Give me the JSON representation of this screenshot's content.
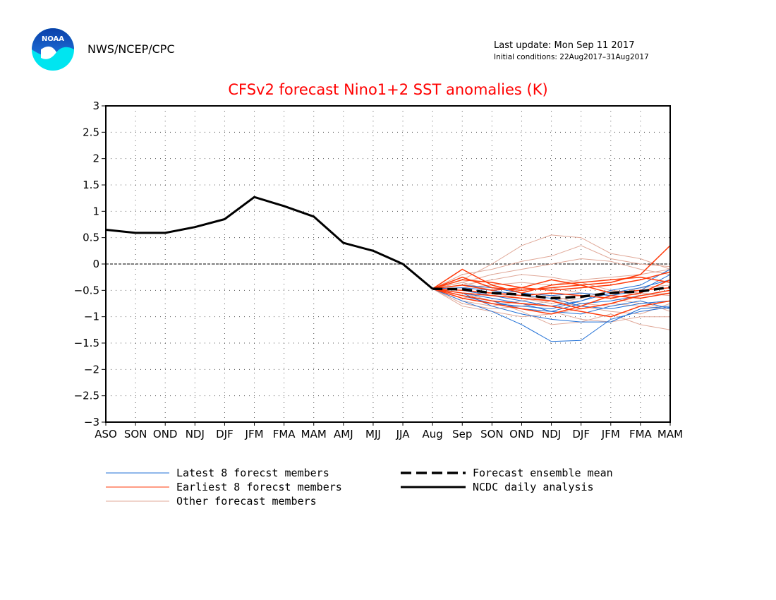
{
  "header": {
    "agency": "NWS/NCEP/CPC",
    "last_update": "Last update: Mon Sep 11 2017",
    "initial_conditions": "Initial conditions: 22Aug2017–31Aug2017",
    "logo_text": "NOAA"
  },
  "chart_data": {
    "type": "line",
    "title": "CFSv2 forecast Nino1+2 SST anomalies (K)",
    "xlabel": "",
    "ylabel": "",
    "categories": [
      "ASO",
      "SON",
      "OND",
      "NDJ",
      "DJF",
      "JFM",
      "FMA",
      "MAM",
      "AMJ",
      "MJJ",
      "JJA",
      "Aug",
      "Sep",
      "SON",
      "OND",
      "NDJ",
      "DJF",
      "JFM",
      "FMA",
      "MAM"
    ],
    "ylim": [
      -3,
      3
    ],
    "yticks": [
      3,
      2.5,
      2,
      1.5,
      1,
      0.5,
      0,
      -0.5,
      -1,
      -1.5,
      -2,
      -2.5,
      -3
    ],
    "ytick_labels": [
      "3",
      "2.5",
      "2",
      "1.5",
      "1",
      "0.5",
      "0",
      "−0.5",
      "−1",
      "−1.5",
      "−2",
      "−2.5",
      "−3"
    ],
    "grid": true,
    "zero_line": true,
    "colors": {
      "latest": "#1f6fd6",
      "earliest": "#ff3a0a",
      "other": "#e0a898",
      "analysis": "#000000",
      "ensemble": "#000000",
      "title": "#ff0000"
    },
    "analysis": {
      "name": "NCDC daily analysis",
      "x_start": 0,
      "values": [
        0.65,
        0.59,
        0.59,
        0.7,
        0.85,
        1.27,
        1.1,
        0.9,
        0.4,
        0.25,
        0.0,
        -0.47
      ]
    },
    "ensemble_mean": {
      "name": "Forecast ensemble mean",
      "x_start": 11,
      "values": [
        -0.47,
        -0.48,
        -0.55,
        -0.58,
        -0.65,
        -0.62,
        -0.55,
        -0.52,
        -0.44
      ]
    },
    "latest_members": {
      "name": "Latest 8 forecst members",
      "x_start": 11,
      "series": [
        [
          -0.47,
          -0.7,
          -0.9,
          -1.15,
          -1.47,
          -1.45,
          -1.05,
          -0.9,
          -0.82
        ],
        [
          -0.47,
          -0.55,
          -0.8,
          -0.95,
          -1.05,
          -1.1,
          -1.1,
          -0.85,
          -0.8
        ],
        [
          -0.47,
          -0.6,
          -0.7,
          -0.85,
          -0.9,
          -0.75,
          -0.7,
          -0.6,
          -0.5
        ],
        [
          -0.47,
          -0.45,
          -0.5,
          -0.6,
          -0.65,
          -0.8,
          -0.85,
          -0.75,
          -0.7
        ],
        [
          -0.47,
          -0.5,
          -0.6,
          -0.7,
          -0.8,
          -0.7,
          -0.5,
          -0.4,
          -0.1
        ],
        [
          -0.47,
          -0.4,
          -0.45,
          -0.55,
          -0.6,
          -0.55,
          -0.6,
          -0.5,
          -0.2
        ],
        [
          -0.47,
          -0.55,
          -0.65,
          -0.75,
          -0.9,
          -0.95,
          -0.8,
          -0.7,
          -0.85
        ],
        [
          -0.47,
          -0.6,
          -0.75,
          -0.8,
          -0.85,
          -0.7,
          -0.55,
          -0.45,
          -0.3
        ]
      ]
    },
    "earliest_members": {
      "name": "Earliest 8 forecst members",
      "x_start": 11,
      "series": [
        [
          -0.47,
          -0.1,
          -0.4,
          -0.55,
          -0.4,
          -0.35,
          -0.3,
          -0.25,
          -0.35
        ],
        [
          -0.47,
          -0.25,
          -0.45,
          -0.5,
          -0.45,
          -0.4,
          -0.35,
          -0.2,
          0.35
        ],
        [
          -0.47,
          -0.3,
          -0.35,
          -0.45,
          -0.5,
          -0.45,
          -0.4,
          -0.3,
          -0.15
        ],
        [
          -0.47,
          -0.55,
          -0.6,
          -0.65,
          -0.7,
          -0.85,
          -0.75,
          -0.6,
          -0.5
        ],
        [
          -0.47,
          -0.6,
          -0.7,
          -0.75,
          -0.8,
          -0.9,
          -1.0,
          -0.8,
          -0.7
        ],
        [
          -0.47,
          -0.4,
          -0.5,
          -0.45,
          -0.3,
          -0.4,
          -0.55,
          -0.5,
          -0.45
        ],
        [
          -0.47,
          -0.5,
          -0.55,
          -0.6,
          -0.55,
          -0.6,
          -0.65,
          -0.55,
          -0.3
        ],
        [
          -0.47,
          -0.65,
          -0.75,
          -0.85,
          -0.95,
          -0.8,
          -0.6,
          -0.65,
          -0.55
        ]
      ]
    },
    "other_members": {
      "name": "Other forecast members",
      "x_start": 11,
      "series": [
        [
          -0.47,
          -0.3,
          0.0,
          0.35,
          0.55,
          0.5,
          0.2,
          0.1,
          -0.1
        ],
        [
          -0.47,
          -0.2,
          -0.1,
          0.05,
          0.15,
          0.35,
          0.1,
          0.0,
          -0.05
        ],
        [
          -0.47,
          -0.35,
          -0.2,
          -0.1,
          0.0,
          0.1,
          0.05,
          -0.1,
          -0.2
        ],
        [
          -0.47,
          -0.55,
          -0.7,
          -0.9,
          -1.15,
          -1.1,
          -0.95,
          -1.15,
          -1.25
        ],
        [
          -0.47,
          -0.6,
          -0.75,
          -0.85,
          -0.9,
          -1.05,
          -1.1,
          -1.0,
          -1.0
        ],
        [
          -0.47,
          -0.4,
          -0.3,
          -0.2,
          -0.25,
          -0.35,
          -0.5,
          -0.6,
          -0.55
        ],
        [
          -0.47,
          -0.7,
          -0.8,
          -0.7,
          -0.6,
          -0.75,
          -0.8,
          -0.7,
          -0.9
        ],
        [
          -0.47,
          -0.45,
          -0.4,
          -0.35,
          -0.4,
          -0.3,
          -0.25,
          -0.2,
          -0.1
        ],
        [
          -0.47,
          -0.8,
          -0.9,
          -1.0,
          -0.95,
          -0.85,
          -0.75,
          -0.8,
          -0.85
        ],
        [
          -0.47,
          -0.5,
          -0.6,
          -0.5,
          -0.45,
          -0.55,
          -0.6,
          -0.45,
          -0.4
        ],
        [
          -0.47,
          -0.65,
          -0.55,
          -0.65,
          -0.75,
          -0.65,
          -0.5,
          -0.55,
          -0.6
        ],
        [
          -0.47,
          -0.35,
          -0.5,
          -0.6,
          -0.7,
          -0.8,
          -0.9,
          -0.95,
          -0.75
        ],
        [
          -0.47,
          -0.75,
          -0.85,
          -0.8,
          -0.7,
          -0.6,
          -0.65,
          -0.75,
          -0.7
        ]
      ]
    },
    "legend": {
      "placement": "bottom",
      "entries": [
        {
          "label": "Latest 8 forecst members",
          "style": "latest"
        },
        {
          "label": "Earliest 8 forecst members",
          "style": "earliest"
        },
        {
          "label": "Other forecast members",
          "style": "other"
        },
        {
          "label": "Forecast ensemble mean",
          "style": "ensemble"
        },
        {
          "label": "NCDC daily analysis",
          "style": "analysis"
        }
      ]
    }
  }
}
